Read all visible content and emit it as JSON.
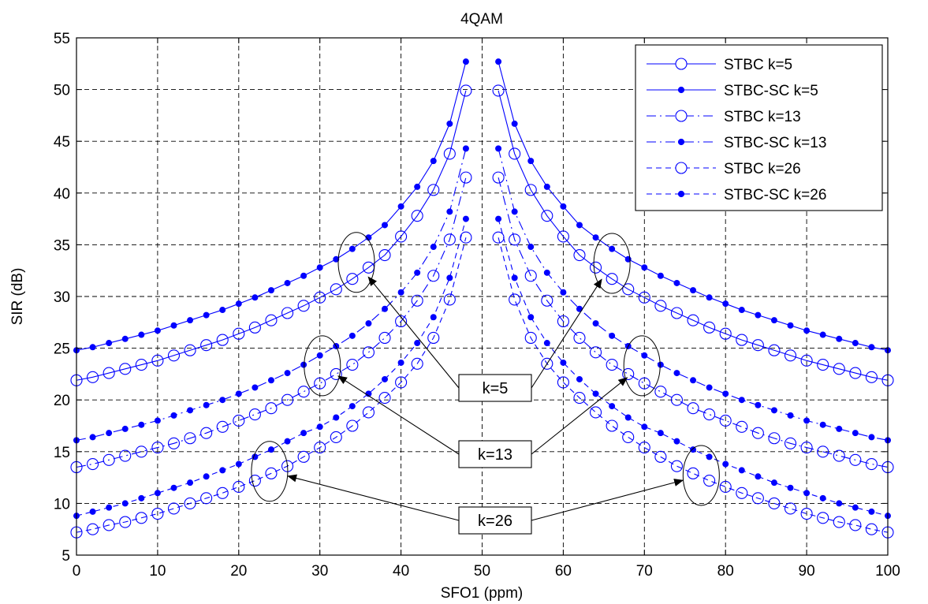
{
  "chart_data": {
    "type": "line",
    "title": "4QAM",
    "xlabel": "SFO1 (ppm)",
    "ylabel": "SIR (dB)",
    "xlim": [
      0,
      100
    ],
    "ylim": [
      5,
      55
    ],
    "xticks": [
      "0",
      "10",
      "20",
      "30",
      "40",
      "50",
      "60",
      "70",
      "80",
      "90",
      "100"
    ],
    "yticks": [
      "5",
      "10",
      "15",
      "20",
      "25",
      "30",
      "35",
      "40",
      "45",
      "50",
      "55"
    ],
    "grid": true,
    "legend_position": "top-right",
    "series_color": "#0000ff",
    "series": [
      {
        "name": "STBC k=5",
        "marker": "open-circle",
        "line": "solid",
        "x": [
          0,
          2,
          4,
          6,
          8,
          10,
          12,
          14,
          16,
          18,
          20,
          22,
          24,
          26,
          28,
          30,
          32,
          34,
          36,
          38,
          40,
          42,
          44,
          46,
          48,
          52,
          54,
          56,
          58,
          60,
          62,
          64,
          66,
          68,
          70,
          72,
          74,
          76,
          78,
          80,
          82,
          84,
          86,
          88,
          90,
          92,
          94,
          96,
          98,
          100
        ],
        "y": [
          21.9,
          22.2,
          22.6,
          23.0,
          23.4,
          23.8,
          24.3,
          24.8,
          25.3,
          25.8,
          26.4,
          27.0,
          27.7,
          28.4,
          29.1,
          29.9,
          30.7,
          31.7,
          32.8,
          34.0,
          35.8,
          37.8,
          40.3,
          43.8,
          49.9,
          49.9,
          43.8,
          40.3,
          37.8,
          35.8,
          34.0,
          32.8,
          31.7,
          30.7,
          29.9,
          29.1,
          28.4,
          27.7,
          27.0,
          26.4,
          25.8,
          25.3,
          24.8,
          24.3,
          23.8,
          23.4,
          23.0,
          22.6,
          22.2,
          21.9
        ]
      },
      {
        "name": "STBC-SC k=5",
        "marker": "filled-dot",
        "line": "solid",
        "x": [
          0,
          2,
          4,
          6,
          8,
          10,
          12,
          14,
          16,
          18,
          20,
          22,
          24,
          26,
          28,
          30,
          32,
          34,
          36,
          38,
          40,
          42,
          44,
          46,
          48,
          52,
          54,
          56,
          58,
          60,
          62,
          64,
          66,
          68,
          70,
          72,
          74,
          76,
          78,
          80,
          82,
          84,
          86,
          88,
          90,
          92,
          94,
          96,
          98,
          100
        ],
        "y": [
          24.8,
          25.1,
          25.5,
          25.9,
          26.3,
          26.7,
          27.2,
          27.7,
          28.2,
          28.7,
          29.3,
          29.9,
          30.6,
          31.3,
          32.0,
          32.8,
          33.6,
          34.6,
          35.7,
          36.9,
          38.7,
          40.6,
          43.1,
          46.7,
          52.7,
          52.7,
          46.7,
          43.1,
          40.6,
          38.7,
          36.9,
          35.7,
          34.6,
          33.6,
          32.8,
          32.0,
          31.3,
          30.6,
          29.9,
          29.3,
          28.7,
          28.2,
          27.7,
          27.2,
          26.7,
          26.3,
          25.9,
          25.5,
          25.1,
          24.8
        ]
      },
      {
        "name": "STBC k=13",
        "marker": "open-circle",
        "line": "dash-dot",
        "x": [
          0,
          2,
          4,
          6,
          8,
          10,
          12,
          14,
          16,
          18,
          20,
          22,
          24,
          26,
          28,
          30,
          32,
          34,
          36,
          38,
          40,
          42,
          44,
          46,
          48,
          52,
          54,
          56,
          58,
          60,
          62,
          64,
          66,
          68,
          70,
          72,
          74,
          76,
          78,
          80,
          82,
          84,
          86,
          88,
          90,
          92,
          94,
          96,
          98,
          100
        ],
        "y": [
          13.5,
          13.8,
          14.2,
          14.6,
          15.0,
          15.4,
          15.8,
          16.3,
          16.8,
          17.4,
          18.0,
          18.6,
          19.2,
          20.0,
          20.8,
          21.6,
          22.5,
          23.4,
          24.6,
          26.0,
          27.6,
          29.6,
          32.0,
          35.5,
          41.5,
          41.5,
          35.5,
          32.0,
          29.6,
          27.6,
          26.0,
          24.6,
          23.4,
          22.5,
          21.6,
          20.8,
          20.0,
          19.2,
          18.6,
          18.0,
          17.4,
          16.8,
          16.3,
          15.8,
          15.4,
          15.0,
          14.6,
          14.2,
          13.8,
          13.5
        ]
      },
      {
        "name": "STBC-SC k=13",
        "marker": "filled-dot",
        "line": "dash-dot",
        "x": [
          0,
          2,
          4,
          6,
          8,
          10,
          12,
          14,
          16,
          18,
          20,
          22,
          24,
          26,
          28,
          30,
          32,
          34,
          36,
          38,
          40,
          42,
          44,
          46,
          48,
          52,
          54,
          56,
          58,
          60,
          62,
          64,
          66,
          68,
          70,
          72,
          74,
          76,
          78,
          80,
          82,
          84,
          86,
          88,
          90,
          92,
          94,
          96,
          98,
          100
        ],
        "y": [
          16.1,
          16.4,
          16.8,
          17.2,
          17.6,
          18.0,
          18.5,
          19.0,
          19.5,
          20.0,
          20.6,
          21.2,
          21.9,
          22.6,
          23.4,
          24.3,
          25.2,
          26.2,
          27.4,
          28.8,
          30.4,
          32.3,
          34.8,
          38.2,
          44.3,
          44.3,
          38.2,
          34.8,
          32.3,
          30.4,
          28.8,
          27.4,
          26.2,
          25.2,
          24.3,
          23.4,
          22.6,
          21.9,
          21.2,
          20.6,
          20.0,
          19.5,
          19.0,
          18.5,
          18.0,
          17.6,
          17.2,
          16.8,
          16.4,
          16.1
        ]
      },
      {
        "name": "STBC k=26",
        "marker": "open-circle",
        "line": "dashed",
        "x": [
          0,
          2,
          4,
          6,
          8,
          10,
          12,
          14,
          16,
          18,
          20,
          22,
          24,
          26,
          28,
          30,
          32,
          34,
          36,
          38,
          40,
          42,
          44,
          46,
          48,
          52,
          54,
          56,
          58,
          60,
          62,
          64,
          66,
          68,
          70,
          72,
          74,
          76,
          78,
          80,
          82,
          84,
          86,
          88,
          90,
          92,
          94,
          96,
          98,
          100
        ],
        "y": [
          7.2,
          7.5,
          7.9,
          8.2,
          8.6,
          9.0,
          9.5,
          10.0,
          10.5,
          11.0,
          11.6,
          12.2,
          12.9,
          13.6,
          14.5,
          15.4,
          16.4,
          17.5,
          18.8,
          20.2,
          21.7,
          23.5,
          26.0,
          29.7,
          35.7,
          35.7,
          29.7,
          26.0,
          23.5,
          21.7,
          20.2,
          18.8,
          17.5,
          16.4,
          15.4,
          14.5,
          13.6,
          12.9,
          12.2,
          11.6,
          11.0,
          10.5,
          10.0,
          9.5,
          9.0,
          8.6,
          8.2,
          7.9,
          7.5,
          7.2
        ]
      },
      {
        "name": "STBC-SC k=26",
        "marker": "filled-dot",
        "line": "dashed",
        "x": [
          0,
          2,
          4,
          6,
          8,
          10,
          12,
          14,
          16,
          18,
          20,
          22,
          24,
          26,
          28,
          30,
          32,
          34,
          36,
          38,
          40,
          42,
          44,
          46,
          48,
          52,
          54,
          56,
          58,
          60,
          62,
          64,
          66,
          68,
          70,
          72,
          74,
          76,
          78,
          80,
          82,
          84,
          86,
          88,
          90,
          92,
          94,
          96,
          98,
          100
        ],
        "y": [
          8.8,
          9.2,
          9.6,
          10.0,
          10.5,
          11.0,
          11.5,
          12.0,
          12.6,
          13.2,
          13.8,
          14.5,
          15.2,
          16.0,
          16.8,
          17.4,
          18.3,
          19.4,
          20.6,
          22.0,
          23.6,
          25.5,
          28.0,
          31.8,
          37.5,
          37.5,
          31.8,
          28.0,
          25.5,
          23.6,
          22.0,
          20.6,
          19.4,
          18.3,
          17.4,
          16.8,
          16.0,
          15.2,
          14.5,
          13.8,
          13.2,
          12.6,
          12.0,
          11.5,
          11.0,
          10.5,
          10.0,
          9.6,
          9.2,
          8.8
        ]
      }
    ],
    "annotations": [
      {
        "text": "k=5",
        "ellipses": [
          {
            "x": 34.5,
            "y": 33.3
          },
          {
            "x": 66,
            "y": 33.2
          }
        ]
      },
      {
        "text": "k=13",
        "ellipses": [
          {
            "x": 30.3,
            "y": 23.3
          },
          {
            "x": 69.7,
            "y": 23.3
          }
        ]
      },
      {
        "text": "k=26",
        "ellipses": [
          {
            "x": 23.8,
            "y": 13.1
          },
          {
            "x": 77,
            "y": 12.7
          }
        ]
      }
    ]
  }
}
